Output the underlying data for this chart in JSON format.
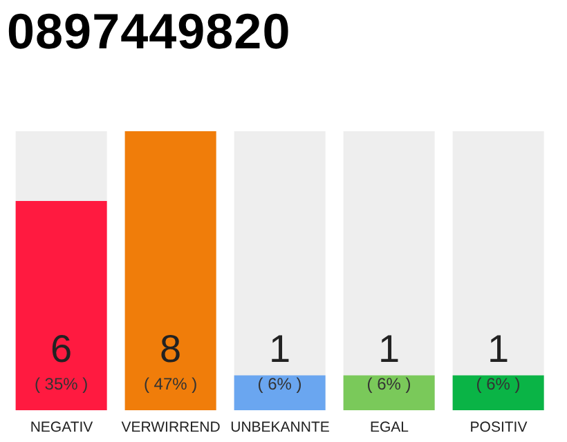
{
  "chart_data": {
    "type": "bar",
    "title": "0897449820",
    "categories": [
      "NEGATIV",
      "VERWIRREND",
      "UNBEKANNTE",
      "EGAL",
      "POSITIV"
    ],
    "values": [
      6,
      8,
      1,
      1,
      1
    ],
    "colors": [
      "#ff1a40",
      "#f07d0a",
      "#6aa6f0",
      "#7ac95a",
      "#0ab446"
    ],
    "data_labels": true,
    "annotations": [
      "( 35% )",
      "( 47% )",
      "( 6% )",
      "( 6% )",
      "( 6% )"
    ],
    "grid": false,
    "legend": false
  }
}
